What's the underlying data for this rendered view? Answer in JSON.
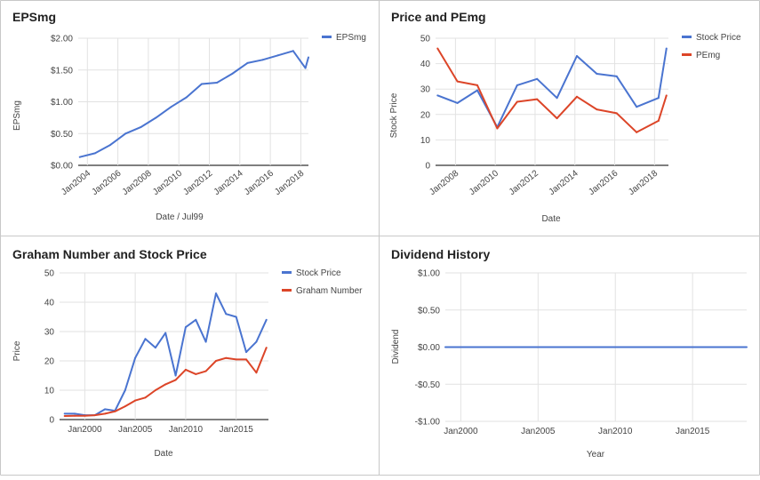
{
  "colors": {
    "blue": "#4a74d0",
    "red": "#dc4528",
    "grid": "#e2e2e2",
    "axis": "#333333",
    "frame": "#c8c8c8",
    "text": "#444444",
    "title": "#222222"
  },
  "chart_data": [
    {
      "type": "line",
      "title": "EPSmg",
      "xlabel": "Date / Jul99",
      "ylabel": "EPSmg",
      "x_ticks": [
        "Jan2004",
        "Jan2006",
        "Jan2008",
        "Jan2010",
        "Jan2012",
        "Jan2014",
        "Jan2016",
        "Jan2018"
      ],
      "y_ticks": [
        "$0.00",
        "$0.50",
        "$1.00",
        "$1.50",
        "$2.00"
      ],
      "ylim": [
        0,
        2
      ],
      "xlim": [
        2003.4,
        2018.5
      ],
      "grid": true,
      "legend": "right",
      "series": [
        {
          "name": "EPSmg",
          "color": "blue",
          "x": [
            2003.5,
            2004.5,
            2005.5,
            2006.5,
            2007.5,
            2008.5,
            2009.5,
            2010.5,
            2011.5,
            2012.5,
            2013.5,
            2014.5,
            2015.5,
            2016.5,
            2017.5,
            2018.3,
            2018.5
          ],
          "y": [
            0.13,
            0.19,
            0.32,
            0.5,
            0.6,
            0.75,
            0.92,
            1.07,
            1.28,
            1.3,
            1.44,
            1.61,
            1.66,
            1.73,
            1.8,
            1.53,
            1.7
          ]
        }
      ]
    },
    {
      "type": "line",
      "title": "Price and PEmg",
      "xlabel": "Date",
      "ylabel": "Stock Price",
      "x_ticks": [
        "Jan2008",
        "Jan2010",
        "Jan2012",
        "Jan2014",
        "Jan2016",
        "Jan2018"
      ],
      "y_ticks": [
        "0",
        "10",
        "20",
        "30",
        "40",
        "50"
      ],
      "ylim": [
        0,
        50
      ],
      "xlim": [
        2007,
        2018.7
      ],
      "grid": true,
      "legend": "right",
      "series": [
        {
          "name": "Stock Price",
          "color": "blue",
          "x": [
            2007.1,
            2008.1,
            2009.1,
            2010.1,
            2011.1,
            2012.1,
            2013.1,
            2014.1,
            2015.1,
            2016.1,
            2017.1,
            2018.2,
            2018.6
          ],
          "y": [
            27.5,
            24.5,
            29.5,
            15,
            31.5,
            34,
            26.5,
            43,
            36,
            35,
            23,
            26.5,
            46
          ]
        },
        {
          "name": "PEmg",
          "color": "red",
          "x": [
            2007.1,
            2008.1,
            2009.1,
            2010.1,
            2011.1,
            2012.1,
            2013.1,
            2014.1,
            2015.1,
            2016.1,
            2017.1,
            2018.2,
            2018.6
          ],
          "y": [
            46,
            33,
            31.5,
            14.5,
            25,
            26,
            18.5,
            27,
            22,
            20.5,
            13,
            17.5,
            27.5
          ]
        }
      ]
    },
    {
      "type": "line",
      "title": "Graham Number and Stock Price",
      "xlabel": "Date",
      "ylabel": "Price",
      "x_ticks": [
        "Jan2000",
        "Jan2005",
        "Jan2010",
        "Jan2015"
      ],
      "y_ticks": [
        "0",
        "10",
        "20",
        "30",
        "40",
        "50"
      ],
      "ylim": [
        0,
        50
      ],
      "xlim": [
        1997.5,
        2018.2
      ],
      "grid": true,
      "legend": "right",
      "series": [
        {
          "name": "Stock Price",
          "color": "blue",
          "x": [
            1998,
            1999,
            2000,
            2001,
            2002,
            2003,
            2004,
            2005,
            2006,
            2007,
            2008,
            2009,
            2010,
            2011,
            2012,
            2013,
            2014,
            2015,
            2016,
            2017,
            2018
          ],
          "y": [
            2,
            2,
            1.5,
            1.5,
            3.5,
            3,
            10,
            21,
            27.5,
            24.5,
            29.5,
            15,
            31.5,
            34,
            26.5,
            43,
            36,
            35,
            23,
            26.5,
            34
          ]
        },
        {
          "name": "Graham Number",
          "color": "red",
          "x": [
            1998,
            1999,
            2000,
            2001,
            2002,
            2003,
            2004,
            2005,
            2006,
            2007,
            2008,
            2009,
            2010,
            2011,
            2012,
            2013,
            2014,
            2015,
            2016,
            2017,
            2018
          ],
          "y": [
            1.2,
            1.3,
            1.3,
            1.5,
            2,
            2.8,
            4.5,
            6.5,
            7.5,
            10,
            12,
            13.5,
            17,
            15.5,
            16.5,
            20,
            21,
            20.5,
            20.5,
            16,
            24.5
          ]
        }
      ]
    },
    {
      "type": "line",
      "title": "Dividend History",
      "xlabel": "Year",
      "ylabel": "Dividend",
      "x_ticks": [
        "Jan2000",
        "Jan2005",
        "Jan2010",
        "Jan2015"
      ],
      "y_ticks": [
        "-$1.00",
        "-$0.50",
        "$0.00",
        "$0.50",
        "$1.00"
      ],
      "ylim": [
        -1,
        1
      ],
      "xlim": [
        1999,
        2018.5
      ],
      "grid": true,
      "series": [
        {
          "color": "blue",
          "x": [
            1999,
            2018.5
          ],
          "y": [
            0,
            0
          ]
        }
      ]
    }
  ]
}
